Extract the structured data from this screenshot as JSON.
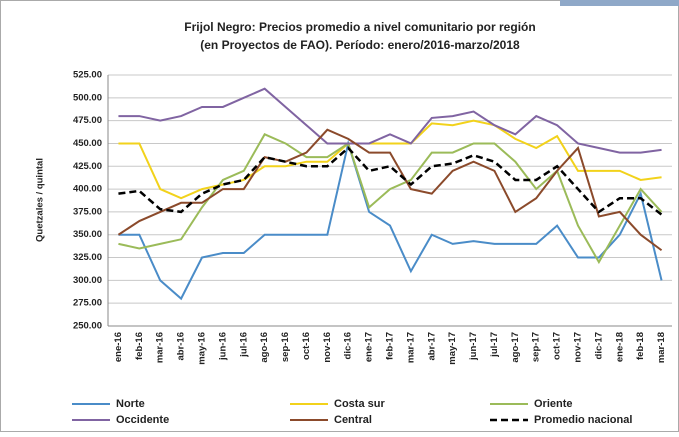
{
  "chart_data": {
    "type": "line",
    "title": [
      "Frijol Negro: Precios promedio a nivel comunitario por región",
      "(en Proyectos de FAO). Período: enero/2016-marzo/2018"
    ],
    "y_label": "Quetzales / quintal",
    "categories": [
      "ene-16",
      "feb-16",
      "mar-16",
      "abr-16",
      "may-16",
      "jun-16",
      "jul-16",
      "ago-16",
      "sep-16",
      "oct-16",
      "nov-16",
      "dic-16",
      "ene-17",
      "feb-17",
      "mar-17",
      "abr-17",
      "may-17",
      "jun-17",
      "jul-17",
      "ago-17",
      "sep-17",
      "oct-17",
      "nov-17",
      "dic-17",
      "ene-18",
      "feb-18",
      "mar-18"
    ],
    "series": [
      {
        "name": "Norte",
        "color": "#4a8cc8",
        "values": [
          350,
          350,
          300,
          280,
          325,
          330,
          330,
          350,
          350,
          350,
          350,
          450,
          375,
          360,
          310,
          350,
          340,
          343,
          340,
          340,
          340,
          360,
          325,
          325,
          350,
          395,
          300
        ]
      },
      {
        "name": "Costa sur",
        "color": "#f2d21b",
        "values": [
          450,
          450,
          400,
          390,
          400,
          405,
          410,
          425,
          425,
          430,
          430,
          450,
          450,
          450,
          450,
          472,
          470,
          475,
          470,
          455,
          445,
          458,
          420,
          420,
          420,
          410,
          413
        ]
      },
      {
        "name": "Oriente",
        "color": "#9bbb59",
        "values": [
          340,
          335,
          340,
          345,
          380,
          410,
          420,
          460,
          450,
          435,
          435,
          450,
          380,
          400,
          410,
          440,
          440,
          450,
          450,
          430,
          400,
          420,
          360,
          320,
          360,
          400,
          375
        ]
      },
      {
        "name": "Occidente",
        "color": "#8064a2",
        "values": [
          480,
          480,
          475,
          480,
          490,
          490,
          500,
          510,
          490,
          470,
          450,
          450,
          450,
          460,
          450,
          478,
          480,
          485,
          470,
          460,
          480,
          470,
          450,
          445,
          440,
          440,
          443
        ]
      },
      {
        "name": "Central",
        "color": "#8b4a2b",
        "values": [
          350,
          365,
          375,
          385,
          385,
          400,
          400,
          435,
          430,
          440,
          465,
          455,
          440,
          440,
          400,
          395,
          420,
          430,
          420,
          375,
          390,
          420,
          445,
          370,
          375,
          350,
          333
        ]
      },
      {
        "name": "Promedio nacional",
        "color": "#000000",
        "dashed": true,
        "values": [
          395,
          398,
          378,
          375,
          395,
          405,
          410,
          435,
          430,
          425,
          425,
          445,
          420,
          425,
          405,
          425,
          428,
          437,
          430,
          410,
          410,
          425,
          400,
          375,
          390,
          390,
          372
        ]
      }
    ],
    "ylim": [
      250,
      525
    ],
    "yticks": [
      {
        "value": 250,
        "label": "250.00"
      },
      {
        "value": 275,
        "label": "275.00"
      },
      {
        "value": 300,
        "label": "300.00"
      },
      {
        "value": 325,
        "label": "325.00"
      },
      {
        "value": 350,
        "label": "350.00"
      },
      {
        "value": 375,
        "label": "375.00"
      },
      {
        "value": 400,
        "label": "400.00"
      },
      {
        "value": 425,
        "label": "425.00"
      },
      {
        "value": 450,
        "label": "450.00"
      },
      {
        "value": 475,
        "label": "475.00"
      },
      {
        "value": 500,
        "label": "500.00"
      },
      {
        "value": 525,
        "label": "525.00"
      }
    ],
    "grid": true
  }
}
